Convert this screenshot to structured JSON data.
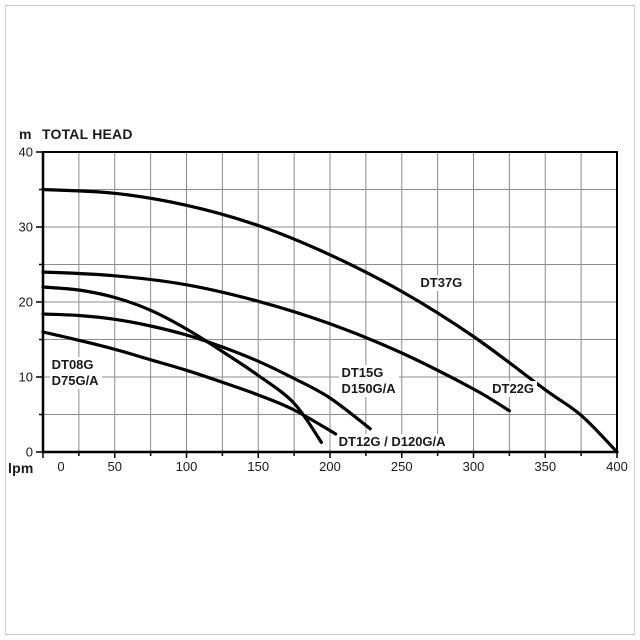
{
  "page": {
    "background": "#ffffff",
    "outer_border_color": "#cfcfcf"
  },
  "chart_data": {
    "type": "line",
    "title": "TOTAL HEAD",
    "y_unit": "m",
    "x_unit": "lpm",
    "xlabel": "lpm",
    "ylabel": "m TOTAL HEAD",
    "xlim": [
      0,
      400
    ],
    "ylim": [
      0,
      40
    ],
    "x_grid_step": 25,
    "y_grid_step": 5,
    "x_tick_labels": [
      0,
      50,
      100,
      150,
      200,
      250,
      300,
      350,
      400
    ],
    "y_tick_labels": [
      0,
      10,
      20,
      30,
      40
    ],
    "grid": true,
    "grid_color": "#8c8c8c",
    "axis_color": "#000000",
    "curve_color": "#000000",
    "legend_position": "inline-labels",
    "series": [
      {
        "name": "DT37G",
        "points": [
          [
            0,
            35
          ],
          [
            50,
            34.5
          ],
          [
            100,
            32.9
          ],
          [
            150,
            30.2
          ],
          [
            200,
            26.3
          ],
          [
            250,
            21.4
          ],
          [
            300,
            15.4
          ],
          [
            350,
            8.3
          ],
          [
            375,
            4.9
          ],
          [
            400,
            0
          ]
        ]
      },
      {
        "name": "DT22G",
        "points": [
          [
            0,
            24
          ],
          [
            50,
            23.5
          ],
          [
            100,
            22.3
          ],
          [
            150,
            20.1
          ],
          [
            200,
            17.1
          ],
          [
            250,
            13.2
          ],
          [
            300,
            8.4
          ],
          [
            325,
            5.5
          ]
        ]
      },
      {
        "name": "DT15G / D150G/A",
        "points": [
          [
            0,
            18.4
          ],
          [
            25,
            18.2
          ],
          [
            50,
            17.7
          ],
          [
            75,
            16.8
          ],
          [
            100,
            15.6
          ],
          [
            125,
            14
          ],
          [
            150,
            12.1
          ],
          [
            175,
            9.8
          ],
          [
            200,
            7.2
          ],
          [
            228,
            3.1
          ]
        ]
      },
      {
        "name": "DT12G / D120G/A",
        "points": [
          [
            0,
            22
          ],
          [
            25,
            21.6
          ],
          [
            50,
            20.6
          ],
          [
            75,
            18.9
          ],
          [
            100,
            16.4
          ],
          [
            125,
            13.4
          ],
          [
            150,
            10.2
          ],
          [
            175,
            6.5
          ],
          [
            194,
            1.3
          ]
        ]
      },
      {
        "name": "DT08G / D75G/A",
        "points": [
          [
            0,
            16
          ],
          [
            25,
            14.9
          ],
          [
            50,
            13.7
          ],
          [
            75,
            12.3
          ],
          [
            100,
            10.9
          ],
          [
            125,
            9.3
          ],
          [
            150,
            7.6
          ],
          [
            175,
            5.6
          ],
          [
            204,
            2.4
          ]
        ]
      }
    ],
    "annotations": [
      {
        "id": "dt37g",
        "lines": [
          "DT37G"
        ],
        "lpm": 263,
        "head": 22.5
      },
      {
        "id": "dt22g",
        "lines": [
          "DT22G"
        ],
        "lpm": 313,
        "head": 8.4
      },
      {
        "id": "dt15g",
        "lines": [
          "DT15G",
          "D150G/A"
        ],
        "lpm": 208,
        "head": 9.5
      },
      {
        "id": "dt08g",
        "lines": [
          "DT08G",
          "D75G/A"
        ],
        "lpm": 6,
        "head": 10.5
      },
      {
        "id": "dt12g",
        "lines": [
          "DT12G / D120G/A"
        ],
        "lpm": 206,
        "head": 1.35
      }
    ]
  }
}
